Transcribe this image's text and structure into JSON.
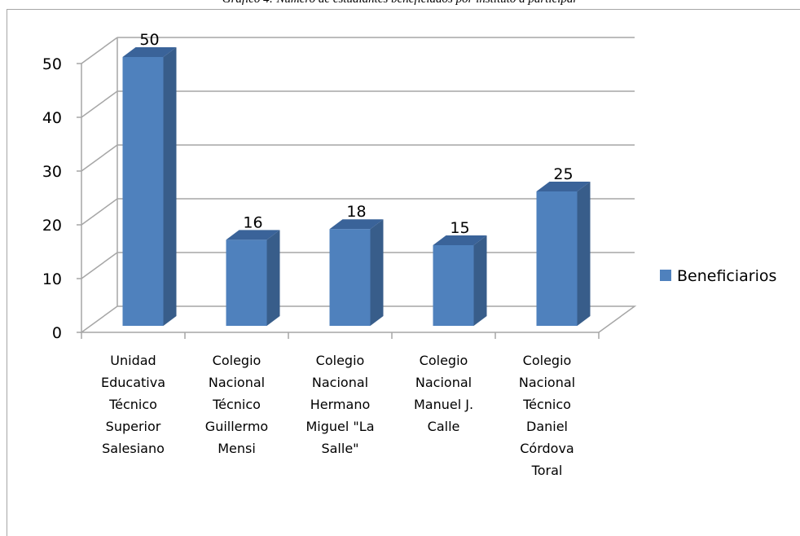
{
  "title": "Gráfico 4: Número de estudiantes beneficiados por instituto a participar",
  "chart_data": {
    "type": "bar",
    "categories": [
      [
        "Unidad",
        "Educativa",
        "Técnico",
        "Superior",
        "Salesiano"
      ],
      [
        "Colegio",
        "Nacional",
        "Técnico",
        "Guillermo",
        "Mensi"
      ],
      [
        "Colegio",
        "Nacional",
        "Hermano",
        "Miguel \"La",
        "Salle\""
      ],
      [
        "Colegio",
        "Nacional",
        "Manuel J.",
        "Calle"
      ],
      [
        "Colegio",
        "Nacional",
        "Técnico",
        "Daniel",
        "Córdova",
        "Toral"
      ]
    ],
    "series": [
      {
        "name": "Beneficiarios",
        "values": [
          50,
          16,
          18,
          15,
          25
        ]
      }
    ],
    "data_labels": [
      "50",
      "16",
      "18",
      "15",
      "25"
    ],
    "yticks": [
      "0",
      "10",
      "20",
      "30",
      "40",
      "50"
    ],
    "ylim": [
      0,
      50
    ],
    "grid": true,
    "legend": "right",
    "colors": {
      "bar_front": "#4f81bd",
      "bar_side": "#385d8a",
      "bar_top": "#3a6399",
      "grid": "#a6a6a6"
    }
  }
}
